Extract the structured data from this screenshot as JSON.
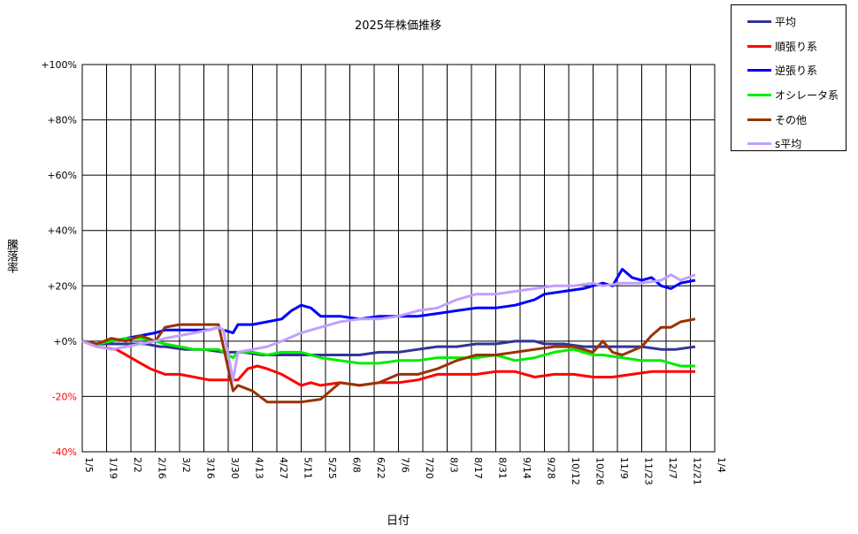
{
  "chart_data": {
    "type": "line",
    "title": "2025年株価推移",
    "xlabel": "日付",
    "ylabel": "騰落率",
    "ylim": [
      -40,
      100
    ],
    "y_ticks": [
      "+100%",
      "+80%",
      "+60%",
      "+40%",
      "+20%",
      "+0%",
      "-20%",
      "-40%"
    ],
    "y_tick_values": [
      100,
      80,
      60,
      40,
      20,
      0,
      -20,
      -40
    ],
    "y_tick_colors": [
      "#000000",
      "#000000",
      "#000000",
      "#000000",
      "#000000",
      "#000000",
      "#ff0000",
      "#ff0000"
    ],
    "x_ticks": [
      "1/5",
      "1/19",
      "2/2",
      "2/16",
      "3/2",
      "3/16",
      "3/30",
      "4/13",
      "4/27",
      "5/11",
      "5/25",
      "6/8",
      "6/22",
      "7/6",
      "7/20",
      "8/3",
      "8/17",
      "8/31",
      "9/14",
      "9/28",
      "10/12",
      "10/26",
      "11/9",
      "11/23",
      "12/7",
      "12/21",
      "1/4"
    ],
    "grid": true,
    "legend_position": "top-right-outside",
    "series": [
      {
        "name": "平均",
        "color": "#333399",
        "values": [
          [
            0,
            0
          ],
          [
            3,
            -1
          ],
          [
            6,
            -1
          ],
          [
            9,
            -1
          ],
          [
            10,
            -1
          ],
          [
            12,
            -1
          ],
          [
            13,
            -1
          ],
          [
            16,
            -2
          ],
          [
            17,
            -2
          ],
          [
            21,
            -3
          ],
          [
            25,
            -3
          ],
          [
            29,
            -4
          ],
          [
            33,
            -4
          ],
          [
            37,
            -5
          ],
          [
            41,
            -5
          ],
          [
            45,
            -5
          ],
          [
            49,
            -5
          ],
          [
            53,
            -5
          ],
          [
            57,
            -5
          ],
          [
            61,
            -4
          ],
          [
            65,
            -4
          ],
          [
            69,
            -3
          ],
          [
            73,
            -2
          ],
          [
            77,
            -2
          ],
          [
            81,
            -1
          ],
          [
            85,
            -1
          ],
          [
            89,
            0
          ],
          [
            93,
            0
          ],
          [
            95,
            -1
          ],
          [
            99,
            -1
          ],
          [
            103,
            -2
          ],
          [
            107,
            -2
          ],
          [
            111,
            -2
          ],
          [
            115,
            -2
          ],
          [
            119,
            -3
          ],
          [
            122,
            -3
          ],
          [
            126,
            -2
          ]
        ]
      },
      {
        "name": "順張り系",
        "color": "#ff0000",
        "values": [
          [
            0,
            0
          ],
          [
            3,
            -2
          ],
          [
            7,
            -3
          ],
          [
            10,
            -6
          ],
          [
            12,
            -8
          ],
          [
            14,
            -10
          ],
          [
            17,
            -12
          ],
          [
            20,
            -12
          ],
          [
            23,
            -13
          ],
          [
            26,
            -14
          ],
          [
            29,
            -14
          ],
          [
            31,
            -14
          ],
          [
            32,
            -14
          ],
          [
            34,
            -10
          ],
          [
            36,
            -9
          ],
          [
            38,
            -10
          ],
          [
            41,
            -12
          ],
          [
            45,
            -16
          ],
          [
            47,
            -15
          ],
          [
            49,
            -16
          ],
          [
            53,
            -15
          ],
          [
            57,
            -16
          ],
          [
            61,
            -15
          ],
          [
            65,
            -15
          ],
          [
            69,
            -14
          ],
          [
            73,
            -12
          ],
          [
            77,
            -12
          ],
          [
            81,
            -12
          ],
          [
            85,
            -11
          ],
          [
            89,
            -11
          ],
          [
            93,
            -13
          ],
          [
            97,
            -12
          ],
          [
            101,
            -12
          ],
          [
            105,
            -13
          ],
          [
            109,
            -13
          ],
          [
            113,
            -12
          ],
          [
            117,
            -11
          ],
          [
            121,
            -11
          ],
          [
            126,
            -11
          ]
        ]
      },
      {
        "name": "逆張り系",
        "color": "#0000ff",
        "values": [
          [
            0,
            0
          ],
          [
            3,
            -1
          ],
          [
            6,
            0
          ],
          [
            9,
            1
          ],
          [
            12,
            2
          ],
          [
            15,
            3
          ],
          [
            17,
            4
          ],
          [
            20,
            4
          ],
          [
            23,
            4
          ],
          [
            26,
            4
          ],
          [
            28,
            5
          ],
          [
            29,
            4
          ],
          [
            31,
            3
          ],
          [
            32,
            6
          ],
          [
            35,
            6
          ],
          [
            38,
            7
          ],
          [
            41,
            8
          ],
          [
            43,
            11
          ],
          [
            45,
            13
          ],
          [
            47,
            12
          ],
          [
            49,
            9
          ],
          [
            53,
            9
          ],
          [
            57,
            8
          ],
          [
            61,
            9
          ],
          [
            65,
            9
          ],
          [
            69,
            9
          ],
          [
            73,
            10
          ],
          [
            77,
            11
          ],
          [
            81,
            12
          ],
          [
            85,
            12
          ],
          [
            89,
            13
          ],
          [
            93,
            15
          ],
          [
            95,
            17
          ],
          [
            99,
            18
          ],
          [
            103,
            19
          ],
          [
            107,
            21
          ],
          [
            109,
            20
          ],
          [
            111,
            26
          ],
          [
            113,
            23
          ],
          [
            115,
            22
          ],
          [
            117,
            23
          ],
          [
            119,
            20
          ],
          [
            121,
            19
          ],
          [
            123,
            21
          ],
          [
            126,
            22
          ]
        ]
      },
      {
        "name": "オシレータ系",
        "color": "#00ee00",
        "values": [
          [
            0,
            0
          ],
          [
            3,
            -1
          ],
          [
            6,
            0
          ],
          [
            9,
            1
          ],
          [
            12,
            1
          ],
          [
            15,
            0
          ],
          [
            17,
            -1
          ],
          [
            20,
            -2
          ],
          [
            23,
            -3
          ],
          [
            26,
            -3
          ],
          [
            28,
            -3
          ],
          [
            29,
            -4
          ],
          [
            31,
            -6
          ],
          [
            32,
            -4
          ],
          [
            35,
            -4
          ],
          [
            38,
            -5
          ],
          [
            41,
            -4
          ],
          [
            45,
            -4
          ],
          [
            49,
            -6
          ],
          [
            53,
            -7
          ],
          [
            57,
            -8
          ],
          [
            61,
            -8
          ],
          [
            65,
            -7
          ],
          [
            69,
            -7
          ],
          [
            73,
            -6
          ],
          [
            77,
            -6
          ],
          [
            81,
            -6
          ],
          [
            85,
            -5
          ],
          [
            89,
            -7
          ],
          [
            93,
            -6
          ],
          [
            97,
            -4
          ],
          [
            101,
            -3
          ],
          [
            105,
            -5
          ],
          [
            107,
            -5
          ],
          [
            111,
            -6
          ],
          [
            115,
            -7
          ],
          [
            119,
            -7
          ],
          [
            123,
            -9
          ],
          [
            126,
            -9
          ]
        ]
      },
      {
        "name": "その他",
        "color": "#993300",
        "values": [
          [
            0,
            0
          ],
          [
            3,
            -1
          ],
          [
            6,
            1
          ],
          [
            9,
            0
          ],
          [
            12,
            2
          ],
          [
            15,
            0
          ],
          [
            17,
            5
          ],
          [
            20,
            6
          ],
          [
            23,
            6
          ],
          [
            26,
            6
          ],
          [
            28,
            6
          ],
          [
            29,
            -2
          ],
          [
            31,
            -18
          ],
          [
            32,
            -16
          ],
          [
            35,
            -18
          ],
          [
            38,
            -22
          ],
          [
            41,
            -22
          ],
          [
            45,
            -22
          ],
          [
            49,
            -21
          ],
          [
            53,
            -15
          ],
          [
            57,
            -16
          ],
          [
            61,
            -15
          ],
          [
            65,
            -12
          ],
          [
            69,
            -12
          ],
          [
            73,
            -10
          ],
          [
            77,
            -7
          ],
          [
            81,
            -5
          ],
          [
            85,
            -5
          ],
          [
            89,
            -4
          ],
          [
            93,
            -3
          ],
          [
            97,
            -2
          ],
          [
            101,
            -2
          ],
          [
            103,
            -3
          ],
          [
            105,
            -4
          ],
          [
            107,
            0
          ],
          [
            109,
            -4
          ],
          [
            111,
            -5
          ],
          [
            115,
            -2
          ],
          [
            117,
            2
          ],
          [
            119,
            5
          ],
          [
            121,
            5
          ],
          [
            123,
            7
          ],
          [
            126,
            8
          ]
        ]
      },
      {
        "name": "s平均",
        "color": "#c0a0ff",
        "values": [
          [
            0,
            0
          ],
          [
            3,
            -2
          ],
          [
            6,
            -3
          ],
          [
            9,
            -2
          ],
          [
            12,
            -1
          ],
          [
            15,
            0
          ],
          [
            17,
            1
          ],
          [
            20,
            2
          ],
          [
            23,
            3
          ],
          [
            26,
            4
          ],
          [
            28,
            5
          ],
          [
            29,
            4
          ],
          [
            31,
            -14
          ],
          [
            32,
            -4
          ],
          [
            35,
            -3
          ],
          [
            38,
            -2
          ],
          [
            41,
            0
          ],
          [
            45,
            3
          ],
          [
            49,
            5
          ],
          [
            53,
            7
          ],
          [
            57,
            8
          ],
          [
            61,
            8
          ],
          [
            65,
            9
          ],
          [
            69,
            11
          ],
          [
            73,
            12
          ],
          [
            77,
            15
          ],
          [
            81,
            17
          ],
          [
            85,
            17
          ],
          [
            89,
            18
          ],
          [
            93,
            19
          ],
          [
            97,
            20
          ],
          [
            101,
            20
          ],
          [
            105,
            21
          ],
          [
            107,
            20
          ],
          [
            111,
            21
          ],
          [
            115,
            21
          ],
          [
            119,
            22
          ],
          [
            121,
            24
          ],
          [
            123,
            22
          ],
          [
            126,
            24
          ]
        ]
      }
    ]
  }
}
